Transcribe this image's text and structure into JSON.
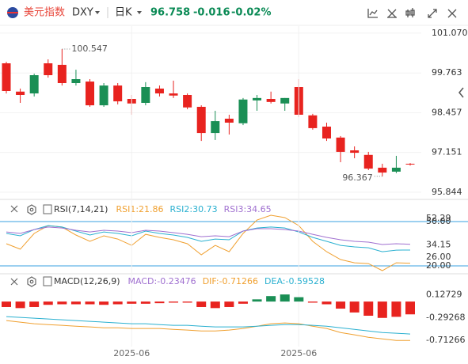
{
  "header": {
    "name": "美元指数",
    "symbol": "DXY",
    "period": "日K",
    "price": "96.758",
    "change": "-0.016",
    "change_pct": "-0.02%"
  },
  "chart_data": [
    {
      "type": "candlestick",
      "up_color": "#1a8f55",
      "down_color": "#e8231f",
      "open": [
        100.08,
        99.15,
        99.09,
        100.08,
        100.03,
        99.43,
        99.48,
        98.7,
        99.35,
        98.91,
        98.78,
        99.25,
        99.09,
        99.04,
        98.65,
        97.79,
        98.26,
        98.11,
        98.86,
        98.91,
        98.76,
        99.3,
        98.37,
        98.0,
        97.64,
        97.22,
        97.07,
        96.65,
        96.52,
        96.78
      ],
      "high": [
        100.13,
        99.25,
        99.74,
        100.21,
        100.547,
        99.87,
        99.56,
        99.43,
        99.43,
        99.04,
        99.46,
        99.35,
        99.51,
        99.09,
        98.7,
        98.52,
        98.39,
        98.94,
        99.04,
        99.15,
        98.94,
        99.56,
        98.42,
        98.13,
        97.69,
        97.35,
        97.17,
        96.78,
        97.04,
        96.8
      ],
      "low": [
        99.09,
        98.78,
        98.99,
        99.61,
        99.35,
        99.35,
        98.65,
        98.65,
        98.73,
        98.39,
        98.7,
        98.99,
        98.94,
        98.57,
        97.53,
        97.56,
        97.74,
        98.05,
        98.52,
        98.76,
        98.52,
        98.31,
        97.9,
        97.53,
        96.83,
        96.96,
        96.57,
        96.367,
        96.47,
        96.72
      ],
      "close": [
        99.17,
        99.04,
        99.69,
        99.69,
        99.43,
        99.56,
        98.7,
        99.35,
        98.83,
        98.76,
        99.3,
        99.09,
        99.02,
        98.63,
        97.79,
        98.18,
        98.13,
        98.89,
        98.94,
        98.81,
        98.94,
        98.39,
        97.95,
        97.61,
        97.17,
        97.14,
        96.62,
        96.49,
        96.65,
        96.76
      ],
      "ylim": [
        95.66,
        101.38
      ],
      "yticks": [
        {
          "value": 101.07,
          "label": "101.070"
        },
        99.763,
        98.457,
        97.151,
        95.844
      ],
      "grid": true
    },
    {
      "type": "line",
      "title": "RSI(7,14,21)",
      "series": [
        {
          "name": "RSI1:21.86",
          "color": "#f0a030",
          "values": [
            35.0,
            31.3,
            42.0,
            47.3,
            46.3,
            40.9,
            36.6,
            40.4,
            38.2,
            33.9,
            41.4,
            39.3,
            37.7,
            35.0,
            27.5,
            33.9,
            29.6,
            42.0,
            51.1,
            54.3,
            52.7,
            47.3,
            36.6,
            29.6,
            24.3,
            22.1,
            21.6,
            16.8,
            22.1,
            21.86
          ]
        },
        {
          "name": "RSI2:30.73",
          "color": "#2ab0d0",
          "values": [
            42.0,
            40.4,
            44.6,
            47.3,
            46.3,
            43.6,
            40.9,
            43.0,
            42.0,
            40.4,
            43.6,
            42.0,
            40.9,
            39.3,
            36.6,
            38.2,
            37.7,
            43.6,
            45.7,
            46.3,
            45.7,
            43.0,
            39.3,
            36.6,
            33.9,
            32.9,
            32.3,
            29.6,
            30.7,
            30.73
          ]
        },
        {
          "name": "RSI3:34.65",
          "color": "#a070d0",
          "values": [
            43.0,
            42.0,
            44.6,
            46.3,
            45.7,
            44.1,
            43.0,
            44.1,
            43.6,
            42.5,
            44.1,
            43.6,
            42.5,
            41.4,
            39.8,
            40.4,
            39.8,
            43.6,
            45.2,
            45.2,
            44.6,
            43.6,
            41.4,
            39.3,
            37.7,
            36.6,
            36.1,
            34.5,
            35.0,
            34.65
          ]
        }
      ],
      "ylim": [
        15.2,
        61.8
      ],
      "levels": [
        {
          "value": 50,
          "label": "50.00"
        },
        {
          "value": 20,
          "label": "20.00"
        }
      ],
      "level_color": "#3aa0e0",
      "yticks": [
        {
          "value": 52.29,
          "label": "52.29"
        },
        {
          "value": 34.15,
          "label": "34.15"
        },
        {
          "value": 26,
          "label": "26.00"
        }
      ]
    },
    {
      "type": "combo",
      "title": "MACD(12,26,9)",
      "up_color": "#1a8f55",
      "down_color": "#e8231f",
      "bar_name": "MACD:-0.23476",
      "bar_label_color": "#a070d0",
      "values": [
        -0.1,
        -0.12,
        -0.1,
        -0.06,
        -0.05,
        -0.05,
        -0.05,
        -0.06,
        -0.05,
        -0.04,
        -0.04,
        -0.03,
        -0.02,
        -0.02,
        -0.1,
        -0.12,
        -0.1,
        -0.04,
        0.04,
        0.1,
        0.13,
        0.08,
        -0.02,
        -0.05,
        -0.13,
        -0.2,
        -0.26,
        -0.3,
        -0.28,
        -0.23476
      ],
      "series": [
        {
          "name": "DIF:-0.71266",
          "color": "#f0a030",
          "values": [
            -0.349,
            -0.378,
            -0.407,
            -0.422,
            -0.436,
            -0.451,
            -0.465,
            -0.48,
            -0.48,
            -0.494,
            -0.494,
            -0.494,
            -0.509,
            -0.523,
            -0.538,
            -0.538,
            -0.523,
            -0.494,
            -0.451,
            -0.407,
            -0.392,
            -0.407,
            -0.451,
            -0.494,
            -0.567,
            -0.61,
            -0.654,
            -0.683,
            -0.712,
            -0.71266
          ]
        },
        {
          "name": "DEA:-0.59528",
          "color": "#2ab0d0",
          "values": [
            -0.276,
            -0.291,
            -0.305,
            -0.32,
            -0.334,
            -0.349,
            -0.363,
            -0.378,
            -0.392,
            -0.407,
            -0.407,
            -0.422,
            -0.436,
            -0.436,
            -0.451,
            -0.465,
            -0.465,
            -0.465,
            -0.451,
            -0.436,
            -0.422,
            -0.422,
            -0.436,
            -0.451,
            -0.48,
            -0.509,
            -0.538,
            -0.567,
            -0.581,
            -0.59528
          ]
        }
      ],
      "categories": [
        null,
        null,
        null,
        null,
        null,
        null,
        null,
        null,
        null,
        "2025-06",
        null,
        null,
        null,
        null,
        null,
        null,
        null,
        null,
        null,
        null,
        null,
        "2025-06",
        null,
        null,
        null,
        null,
        null,
        null,
        null,
        null
      ],
      "ylim": [
        -1.0,
        0.48
      ],
      "yticks": [
        0.12729,
        -0.29268,
        -0.71266
      ]
    }
  ]
}
